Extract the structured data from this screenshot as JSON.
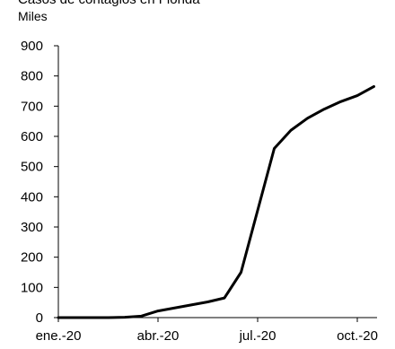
{
  "chart_data": {
    "type": "line",
    "title": "Casos de contagios en Florida",
    "subtitle": "Miles",
    "categories": [
      "ene.-20",
      null,
      null,
      null,
      null,
      null,
      "abr.-20",
      null,
      null,
      null,
      null,
      null,
      "jul.-20",
      null,
      null,
      null,
      null,
      null,
      "oct.-20",
      null
    ],
    "series": [
      {
        "name": "Florida",
        "color": "#000000",
        "values": [
          0,
          0,
          0,
          0,
          1,
          5,
          22,
          32,
          42,
          52,
          65,
          150,
          355,
          560,
          620,
          660,
          690,
          715,
          735,
          765
        ]
      }
    ],
    "ylim": [
      0,
      900
    ],
    "yticks": [
      0,
      100,
      200,
      300,
      400,
      500,
      600,
      700,
      800,
      900
    ],
    "grid": false,
    "legend": false
  }
}
